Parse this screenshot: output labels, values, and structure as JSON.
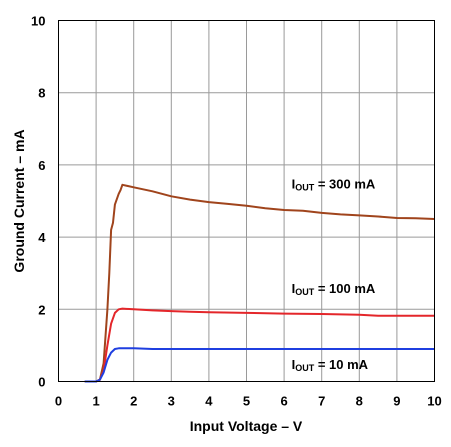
{
  "chart_data": {
    "type": "line",
    "xlabel": "Input Voltage – V",
    "ylabel": "Ground Current – mA",
    "xlim": [
      0,
      10
    ],
    "ylim": [
      0,
      10
    ],
    "xticks": [
      0,
      1,
      2,
      3,
      4,
      5,
      6,
      7,
      8,
      9,
      10
    ],
    "yticks": [
      0,
      2,
      4,
      6,
      8,
      10
    ],
    "grid": true,
    "series": [
      {
        "name_main": "I",
        "name_sub": "OUT",
        "name_rest": " = 300 mA",
        "color": "#a0441c",
        "x": [
          0.7,
          1.0,
          1.1,
          1.2,
          1.3,
          1.35,
          1.4,
          1.45,
          1.5,
          1.6,
          1.65,
          1.7,
          2.0,
          2.5,
          3.0,
          3.5,
          4.0,
          4.5,
          5.0,
          5.5,
          6.0,
          6.5,
          7.0,
          7.5,
          8.0,
          8.5,
          9.0,
          9.5,
          10.0
        ],
        "y": [
          0.0,
          0.0,
          0.05,
          0.5,
          2.0,
          3.0,
          4.2,
          4.4,
          4.9,
          5.2,
          5.3,
          5.45,
          5.38,
          5.27,
          5.13,
          5.04,
          4.97,
          4.92,
          4.87,
          4.8,
          4.75,
          4.73,
          4.67,
          4.63,
          4.6,
          4.57,
          4.53,
          4.52,
          4.5
        ]
      },
      {
        "name_main": "I",
        "name_sub": "OUT",
        "name_rest": " = 100 mA",
        "color": "#e4262a",
        "x": [
          0.7,
          1.0,
          1.1,
          1.2,
          1.3,
          1.4,
          1.5,
          1.6,
          1.7,
          2.0,
          2.5,
          3.0,
          3.5,
          4.0,
          5.0,
          6.0,
          7.0,
          8.0,
          8.5,
          9.0,
          10.0
        ],
        "y": [
          0.0,
          0.0,
          0.05,
          0.3,
          1.0,
          1.6,
          1.9,
          2.0,
          2.02,
          2.0,
          1.97,
          1.95,
          1.93,
          1.92,
          1.9,
          1.88,
          1.87,
          1.85,
          1.82,
          1.82,
          1.82
        ]
      },
      {
        "name_main": "I",
        "name_sub": "OUT",
        "name_rest": " = 10 mA",
        "color": "#1f3fe0",
        "x": [
          0.7,
          1.0,
          1.1,
          1.2,
          1.3,
          1.4,
          1.5,
          1.6,
          1.7,
          2.0,
          2.5,
          3.0,
          4.0,
          5.0,
          6.0,
          7.0,
          8.0,
          9.0,
          10.0
        ],
        "y": [
          0.0,
          0.0,
          0.05,
          0.25,
          0.6,
          0.8,
          0.9,
          0.92,
          0.92,
          0.92,
          0.9,
          0.9,
          0.9,
          0.9,
          0.9,
          0.9,
          0.9,
          0.9,
          0.9
        ]
      }
    ],
    "annotations": [
      {
        "main": "I",
        "sub": "OUT",
        "rest": " = 300 mA",
        "x": 6.2,
        "y": 5.35
      },
      {
        "main": "I",
        "sub": "OUT",
        "rest": " = 100 mA",
        "x": 6.2,
        "y": 2.45
      },
      {
        "main": "I",
        "sub": "OUT",
        "rest": " = 10 mA",
        "x": 6.2,
        "y": 0.35
      }
    ]
  }
}
